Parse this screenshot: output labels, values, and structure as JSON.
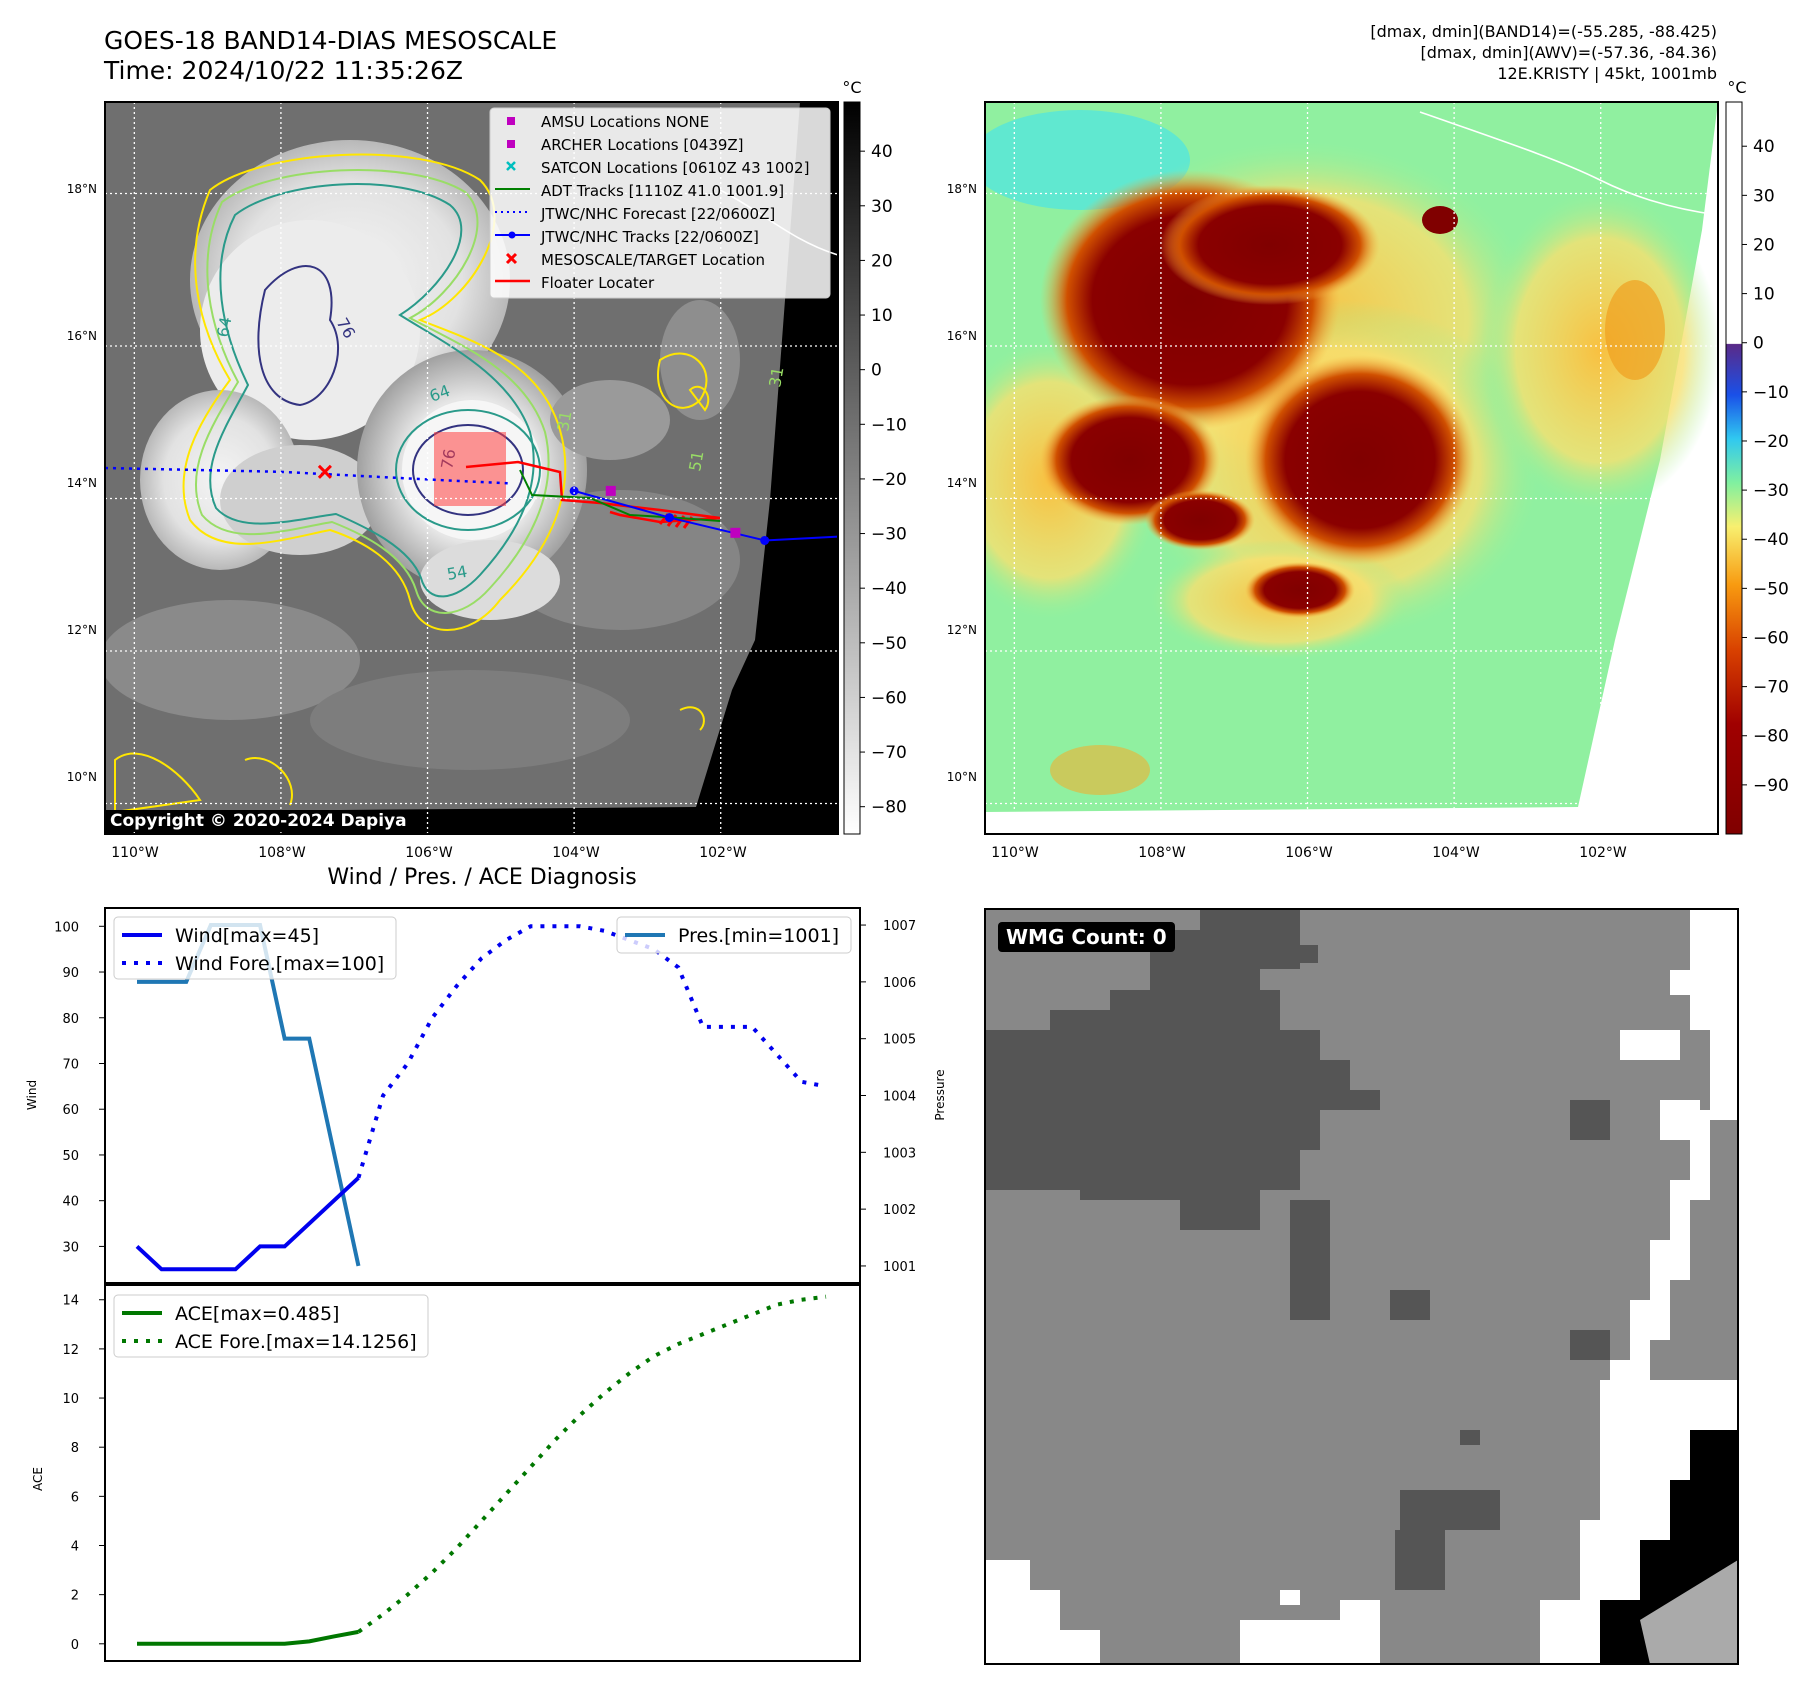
{
  "header": {
    "title_line1": "GOES-18 BAND14-DIAS MESOSCALE",
    "title_line2": "Time: 2024/10/22 11:35:26Z",
    "right_line1": "[dmax, dmin](BAND14)=(-55.285, -88.425)",
    "right_line2": "[dmax, dmin](AWV)=(-57.36, -84.36)",
    "right_line3": "12E.KRISTY | 45kt, 1001mb"
  },
  "copyright": "Copyright © 2020-2024 Dapiya",
  "colors": {
    "wind": "#0000ee",
    "pressure": "#1f77b4",
    "ace": "#007700",
    "adt": "#008000",
    "jtwc": "#0000ff",
    "floater": "#ff0000",
    "marker_magenta": "#bf00bf",
    "marker_cyan": "#00bfbf"
  },
  "ir_map": {
    "unit": "°C",
    "colorbar_ticks": [
      40,
      30,
      20,
      10,
      0,
      -10,
      -20,
      -30,
      -40,
      -50,
      -60,
      -70,
      -80
    ],
    "colorbar_range": [
      -85,
      49
    ],
    "lat_labels": [
      "18°N",
      "16°N",
      "14°N",
      "12°N",
      "10°N"
    ],
    "lat_values": [
      18,
      16,
      14,
      12,
      10
    ],
    "lon_labels": [
      "110°W",
      "108°W",
      "106°W",
      "104°W",
      "102°W"
    ],
    "lon_values": [
      -110,
      -108,
      -106,
      -104,
      -102
    ],
    "lat_range": [
      9.6,
      19.2
    ],
    "lon_range": [
      -110.4,
      -100.4
    ],
    "legend": [
      {
        "label": "AMSU Locations NONE",
        "marker": "square",
        "color": "#bf00bf"
      },
      {
        "label": "ARCHER Locations [0439Z]",
        "marker": "square",
        "color": "#bf00bf"
      },
      {
        "label": "SATCON Locations [0610Z 43 1002]",
        "marker": "x",
        "color": "#00bfbf"
      },
      {
        "label": "ADT Tracks [1110Z 41.0 1001.9]",
        "marker": "line",
        "color": "#008000"
      },
      {
        "label": "JTWC/NHC Forecast [22/0600Z]",
        "marker": "dotted",
        "color": "#0000ff"
      },
      {
        "label": "JTWC/NHC Tracks [22/0600Z]",
        "marker": "line-dot",
        "color": "#0000ff"
      },
      {
        "label": "MESOSCALE/TARGET Location",
        "marker": "x",
        "color": "#ff0000"
      },
      {
        "label": "Floater Locater",
        "marker": "line",
        "color": "#ff0000"
      }
    ],
    "contour_labels": [
      "64",
      "76",
      "64",
      "76",
      "54",
      "31",
      "51",
      "31"
    ],
    "jtwc_forecast_track": [
      {
        "lon": -110.4,
        "lat": 14.4
      },
      {
        "lon": -108.0,
        "lat": 14.35
      },
      {
        "lon": -106.0,
        "lat": 14.25
      },
      {
        "lon": -104.9,
        "lat": 14.2
      }
    ],
    "jtwc_track": [
      {
        "lon": -104.0,
        "lat": 14.1
      },
      {
        "lon": -102.7,
        "lat": 13.75
      },
      {
        "lon": -101.4,
        "lat": 13.45
      },
      {
        "lon": -100.4,
        "lat": 13.5
      }
    ],
    "target_location": {
      "lon": -107.4,
      "lat": 14.35
    },
    "archer_markers": [
      {
        "lon": -103.5,
        "lat": 14.1
      },
      {
        "lon": -101.8,
        "lat": 13.55
      }
    ]
  },
  "awv_map": {
    "unit": "°C",
    "colorbar_ticks": [
      40,
      30,
      20,
      10,
      0,
      -10,
      -20,
      -30,
      -40,
      -50,
      -60,
      -70,
      -80,
      -90
    ],
    "colorbar_range": [
      -100,
      49
    ],
    "lat_labels": [
      "18°N",
      "16°N",
      "14°N",
      "12°N",
      "10°N"
    ],
    "lon_labels": [
      "110°W",
      "108°W",
      "106°W",
      "104°W",
      "102°W"
    ]
  },
  "wmg": {
    "label": "WMG Count: 0"
  },
  "chart_data": [
    {
      "type": "line",
      "title": "Wind / Pres. / ACE Diagnosis",
      "ylabel": "Wind",
      "ylim": [
        22,
        104
      ],
      "y_ticks": [
        30,
        40,
        50,
        60,
        70,
        80,
        90,
        100
      ],
      "y2label": "Pressure",
      "y2lim": [
        1000.7,
        1007.3
      ],
      "y2_ticks": [
        1001,
        1002,
        1003,
        1004,
        1005,
        1006,
        1007
      ],
      "legend_left": "upper-left",
      "legend_right": "upper-right",
      "series": [
        {
          "name": "Wind[max=45]",
          "axis": "left",
          "style": "solid",
          "x": [
            0,
            1,
            2,
            3,
            4,
            5,
            6,
            7,
            8,
            9
          ],
          "values": [
            30,
            25,
            25,
            25,
            25,
            30,
            30,
            35,
            40,
            45
          ]
        },
        {
          "name": "Wind Fore.[max=100]",
          "axis": "left",
          "style": "dotted",
          "x": [
            9,
            10,
            11,
            12,
            13,
            14,
            15,
            16,
            17,
            18,
            19,
            20,
            21,
            22,
            23,
            24,
            25,
            26,
            27,
            28
          ],
          "values": [
            45,
            63,
            70,
            80,
            87,
            93,
            97,
            100,
            100,
            100,
            99,
            97,
            95,
            91,
            78,
            78,
            78,
            72,
            66,
            65
          ]
        },
        {
          "name": "Pres.[min=1001]",
          "axis": "right",
          "style": "solid",
          "x": [
            0,
            1,
            2,
            3,
            4,
            5,
            6,
            7,
            8,
            9
          ],
          "values": [
            1006,
            1006,
            1006,
            1007,
            1007,
            1007,
            1005,
            1005,
            1003,
            1001
          ]
        }
      ]
    },
    {
      "type": "line",
      "ylabel": "ACE",
      "ylim": [
        -0.7,
        14.6
      ],
      "y_ticks": [
        0,
        2,
        4,
        6,
        8,
        10,
        12,
        14
      ],
      "legend": "upper-left",
      "series": [
        {
          "name": "ACE[max=0.485]",
          "style": "solid",
          "x": [
            0,
            1,
            2,
            3,
            4,
            5,
            6,
            7,
            8,
            9
          ],
          "values": [
            0,
            0,
            0,
            0,
            0,
            0,
            0,
            0.1,
            0.3,
            0.485
          ]
        },
        {
          "name": "ACE Fore.[max=14.1256]",
          "style": "dotted",
          "x": [
            9,
            10,
            11,
            12,
            13,
            14,
            15,
            16,
            17,
            18,
            19,
            20,
            21,
            22,
            23,
            24,
            25,
            26,
            27,
            28
          ],
          "values": [
            0.485,
            1.2,
            2.0,
            2.9,
            3.9,
            5.0,
            6.1,
            7.2,
            8.3,
            9.3,
            10.2,
            11.0,
            11.7,
            12.2,
            12.6,
            13.0,
            13.4,
            13.8,
            14.0,
            14.1256
          ]
        }
      ]
    }
  ]
}
